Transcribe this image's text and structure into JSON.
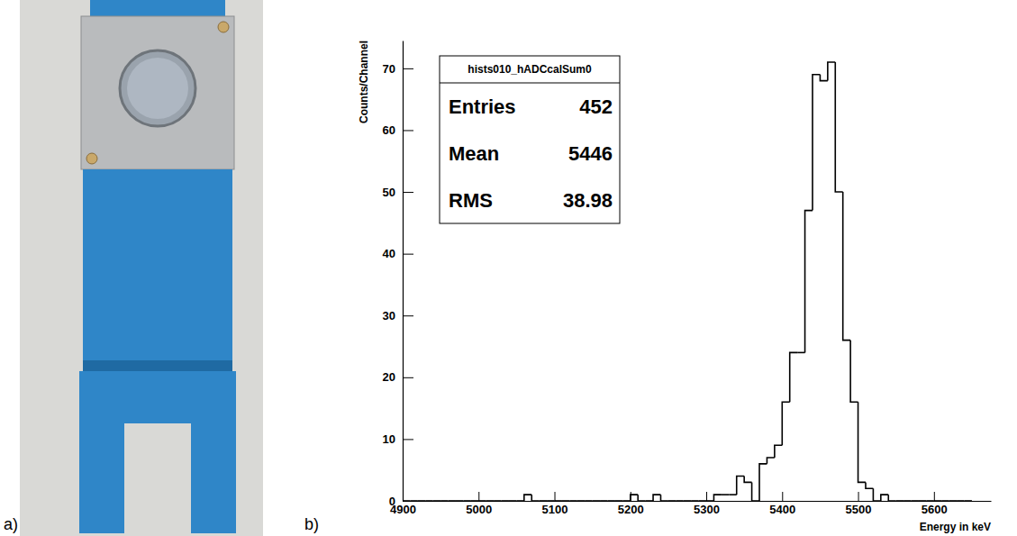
{
  "panel_labels": [
    "a)",
    "b)"
  ],
  "chart_data": {
    "type": "histogram",
    "x_label": "Energy in keV",
    "y_label": "Counts/Channel",
    "color": "#000000",
    "grid": false,
    "bins": [
      4900,
      4910,
      4920,
      4930,
      4940,
      4950,
      4960,
      4970,
      4980,
      4990,
      5000,
      5010,
      5020,
      5030,
      5040,
      5050,
      5060,
      5070,
      5080,
      5090,
      5100,
      5110,
      5120,
      5130,
      5140,
      5150,
      5160,
      5170,
      5180,
      5190,
      5200,
      5210,
      5220,
      5230,
      5240,
      5250,
      5260,
      5270,
      5280,
      5290,
      5300,
      5310,
      5320,
      5330,
      5340,
      5350,
      5360,
      5370,
      5380,
      5390,
      5400,
      5410,
      5420,
      5430,
      5440,
      5450,
      5460,
      5470,
      5480,
      5490,
      5500,
      5510,
      5520,
      5530,
      5540,
      5550,
      5560,
      5570,
      5580,
      5590,
      5600,
      5610,
      5620,
      5630,
      5640,
      5650
    ],
    "values": [
      0,
      0,
      0,
      0,
      0,
      0,
      0,
      0,
      0,
      0,
      0,
      0,
      0,
      0,
      0,
      0,
      1,
      0,
      0,
      0,
      0,
      0,
      0,
      0,
      0,
      0,
      0,
      0,
      0,
      0,
      1,
      0,
      0,
      1,
      0,
      0,
      0,
      0,
      0,
      0,
      0,
      1,
      1,
      1,
      4,
      3,
      0,
      6,
      7,
      9,
      16,
      24,
      24,
      47,
      69,
      68,
      71,
      50,
      26,
      16,
      3,
      2,
      0,
      1,
      0,
      0,
      0,
      0,
      0,
      0,
      0,
      0,
      0,
      0,
      0
    ],
    "xlim": [
      4900,
      5675
    ],
    "xticks": [
      4900,
      5000,
      5100,
      5200,
      5300,
      5400,
      5500,
      5600
    ],
    "ylim": [
      0,
      74.5
    ],
    "yticks": [
      0,
      10,
      20,
      30,
      40,
      50,
      60,
      70
    ],
    "stats_box": {
      "title": "hists010_hADCcalSum0",
      "rows": [
        {
          "label": "Entries",
          "value": 452
        },
        {
          "label": "Mean",
          "value": 5446
        },
        {
          "label": "RMS",
          "value": 38.98
        }
      ]
    }
  }
}
